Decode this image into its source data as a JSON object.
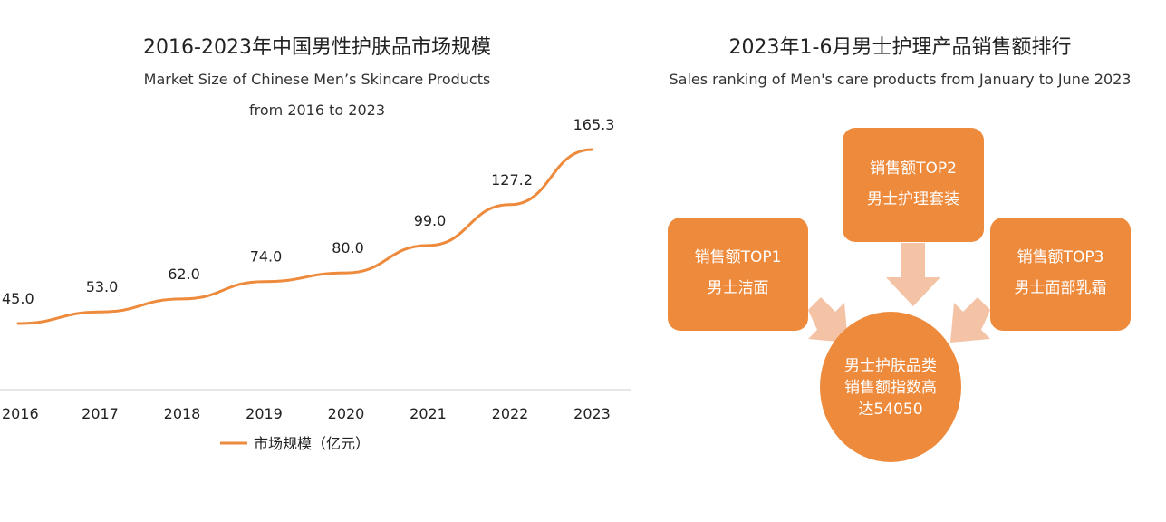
{
  "left": {
    "title": "2016-2023年中国男性护肤品市场规模",
    "subtitle_line1": "Market Size of Chinese Men’s Skincare Products",
    "subtitle_line2": "from 2016 to 2023"
  },
  "right": {
    "title": "2023年1-6月男士护理产品销售额排行",
    "subtitle": "Sales ranking of Men's care products from January to June 2023",
    "boxes": [
      {
        "rank": "销售额TOP1",
        "product": "男士洁面"
      },
      {
        "rank": "销售额TOP2",
        "product": "男士护理套装"
      },
      {
        "rank": "销售额TOP3",
        "product": "男士面部乳霜"
      }
    ],
    "center": {
      "line1": "男士护肤品类",
      "line2": "销售额指数高",
      "line3": "达54050"
    }
  },
  "colors": {
    "line": "#ee8a3c",
    "box": "#ee8a3c",
    "arrow": "#f4c3a6",
    "axis": "#cccccc"
  },
  "chart_data": {
    "type": "line",
    "categories": [
      "2016",
      "2017",
      "2018",
      "2019",
      "2020",
      "2021",
      "2022",
      "2023"
    ],
    "series": [
      {
        "name": "市场规模（亿元）",
        "values": [
          45.0,
          53.0,
          62.0,
          74.0,
          80.0,
          99.0,
          127.2,
          165.3
        ]
      }
    ],
    "data_labels": [
      "45.0",
      "53.0",
      "62.0",
      "74.0",
      "80.0",
      "99.0",
      "127.2",
      "165.3"
    ],
    "title": "2016-2023年中国男性护肤品市场规模",
    "grid": false,
    "legend": "bottom-center"
  }
}
